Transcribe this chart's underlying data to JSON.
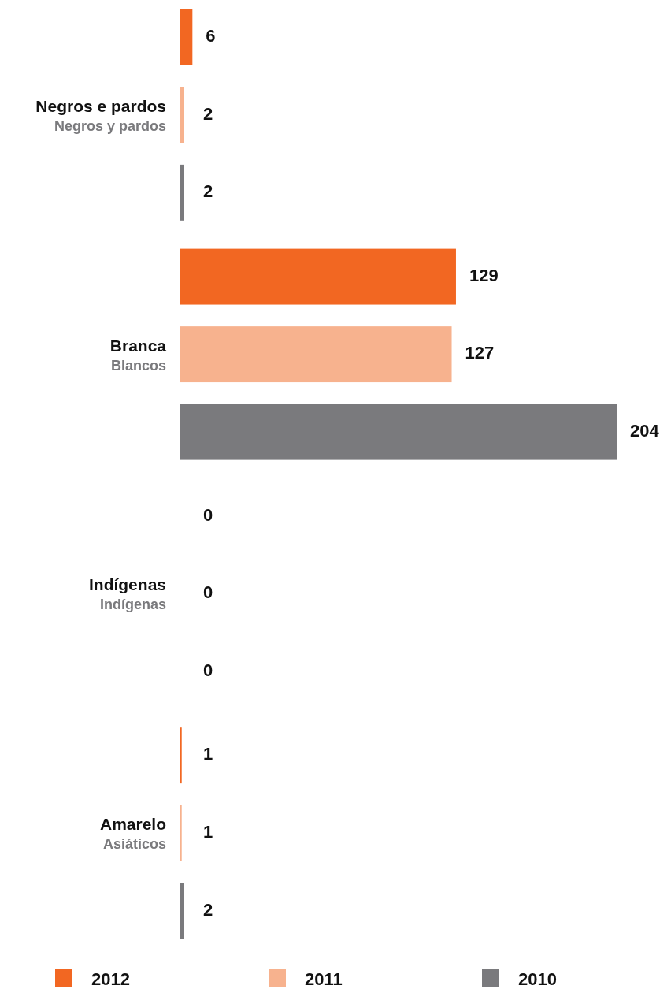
{
  "chart_data": {
    "type": "bar",
    "orientation": "horizontal",
    "categories": [
      "Negros e pardos\nNegros y pardos",
      "Branca\nBlancos",
      "Indígenas\nIndígenas",
      "Amarelo\nAsiáticos"
    ],
    "series": [
      {
        "name": "2012",
        "color": "#f26722",
        "values": [
          6,
          129,
          0,
          1
        ]
      },
      {
        "name": "2011",
        "color": "#f7b28e",
        "values": [
          2,
          127,
          0,
          1
        ]
      },
      {
        "name": "2010",
        "color": "#7a7a7d",
        "values": [
          2,
          204,
          0,
          2
        ]
      }
    ],
    "data_labels": true,
    "legend": "bottom",
    "grid": false
  }
}
